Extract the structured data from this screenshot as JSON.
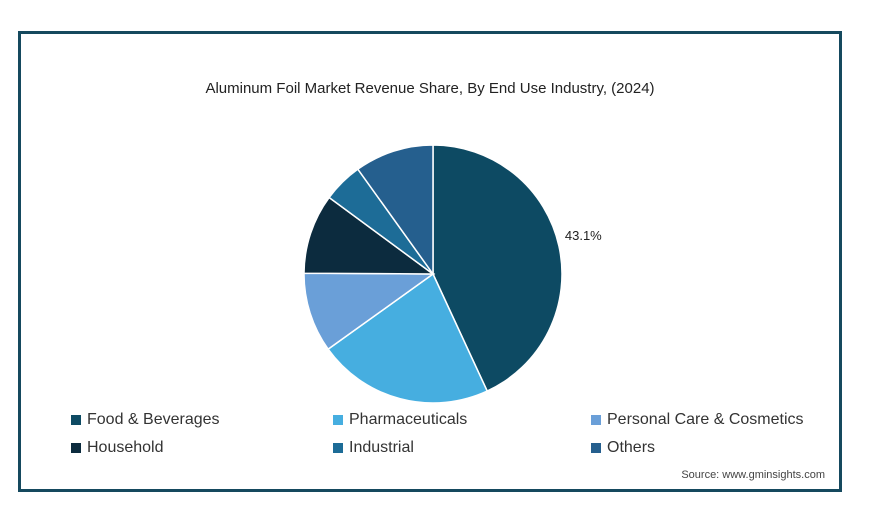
{
  "chart_data": {
    "type": "pie",
    "title": "Aluminum Foil Market Revenue Share, By End Use Industry,  (2024)",
    "slices": [
      {
        "label": "Food & Beverages",
        "value": 43.1,
        "color": "#0d4a63",
        "data_label": "43.1%"
      },
      {
        "label": "Pharmaceuticals",
        "value": 22.0,
        "color": "#46aee0",
        "data_label": ""
      },
      {
        "label": "Personal Care & Cosmetics",
        "value": 10.0,
        "color": "#6a9fd8",
        "data_label": ""
      },
      {
        "label": "Household",
        "value": 10.0,
        "color": "#0c2b3e",
        "data_label": ""
      },
      {
        "label": "Industrial",
        "value": 5.0,
        "color": "#1d6c97",
        "data_label": ""
      },
      {
        "label": "Others",
        "value": 9.9,
        "color": "#255f8e",
        "data_label": ""
      }
    ],
    "legend_position": "bottom"
  },
  "source": "Source: www.gminsights.com"
}
